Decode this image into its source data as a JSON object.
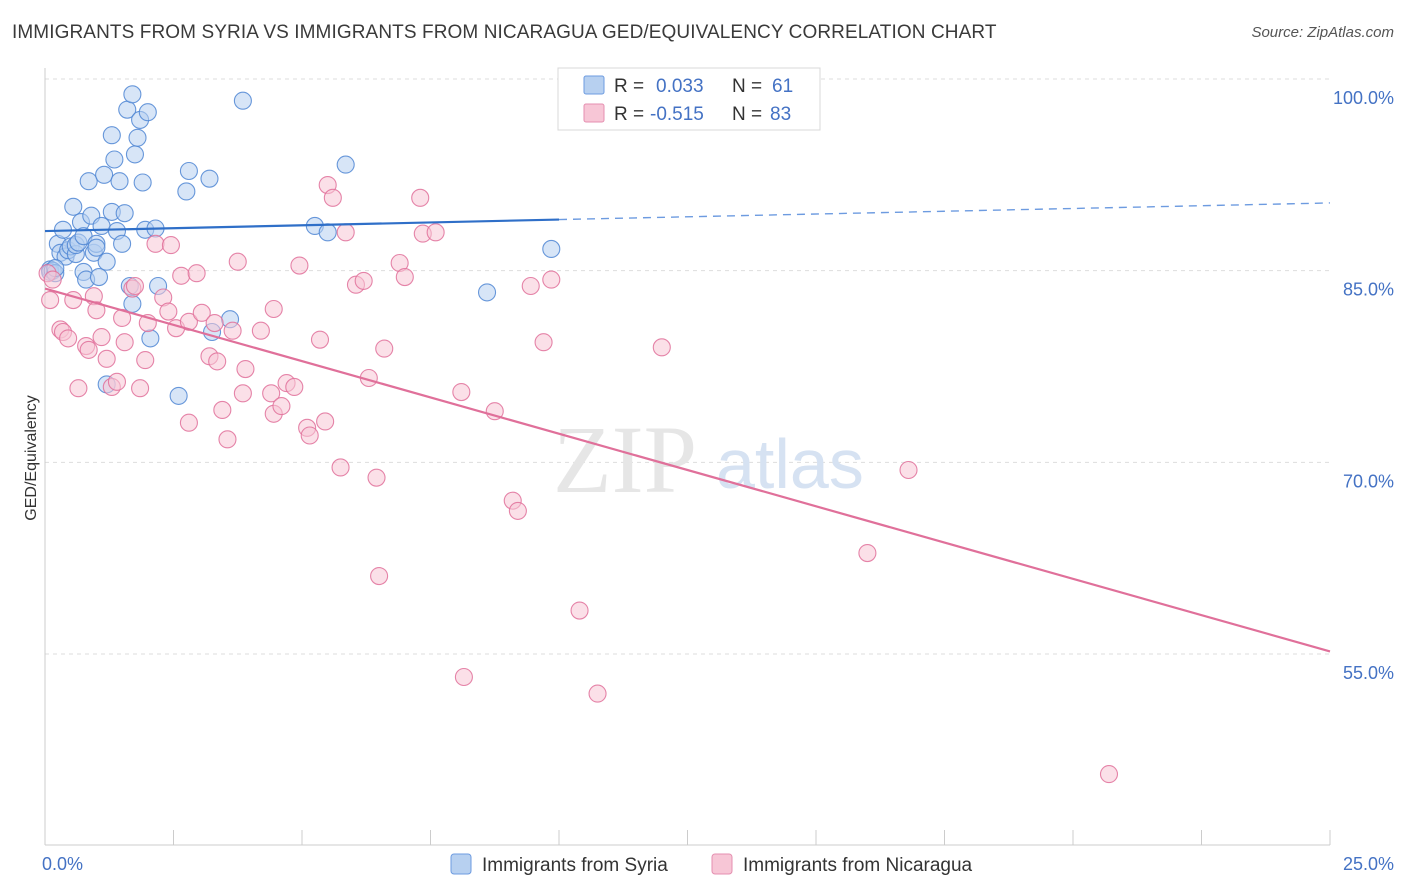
{
  "title": "IMMIGRANTS FROM SYRIA VS IMMIGRANTS FROM NICARAGUA GED/EQUIVALENCY CORRELATION CHART",
  "source": "Source: ZipAtlas.com",
  "watermark": {
    "zip": "ZIP",
    "atlas": "atlas"
  },
  "chart_data": {
    "type": "scatter",
    "title": "IMMIGRANTS FROM SYRIA VS IMMIGRANTS FROM NICARAGUA GED/EQUIVALENCY CORRELATION CHART",
    "xlabel": "",
    "ylabel": "GED/Equivalency",
    "xlim": [
      0,
      25
    ],
    "ylim": [
      40,
      101
    ],
    "x_tick_labels": [
      {
        "value": 0,
        "label": "0.0%"
      },
      {
        "value": 25,
        "label": "25.0%"
      }
    ],
    "y_tick_labels": [
      {
        "value": 100,
        "label": "100.0%"
      },
      {
        "value": 85,
        "label": "85.0%"
      },
      {
        "value": 70,
        "label": "70.0%"
      },
      {
        "value": 55,
        "label": "55.0%"
      }
    ],
    "grid": true,
    "legend_position": "top-center",
    "stats": [
      {
        "series": "Immigrants from Syria",
        "r_label": "R =",
        "r_value": "0.033",
        "n_label": "N =",
        "n_value": "61"
      },
      {
        "series": "Immigrants from Nicaragua",
        "r_label": "R =",
        "r_value": "-0.515",
        "n_label": "N =",
        "n_value": "83"
      }
    ],
    "series": [
      {
        "name": "Immigrants from Syria",
        "color": "#4f86d4",
        "fill": "#b7d0f0",
        "trend": {
          "x0": 0,
          "y0": 88.1,
          "x1": 10,
          "y1": 89.0,
          "x_dash_end": 25,
          "y_dash_end": 90.3
        },
        "points": [
          [
            0.1,
            85.1
          ],
          [
            0.1,
            84.9
          ],
          [
            0.15,
            85.0
          ],
          [
            0.2,
            84.8
          ],
          [
            0.25,
            87.1
          ],
          [
            0.3,
            86.4
          ],
          [
            0.35,
            88.2
          ],
          [
            0.4,
            86.1
          ],
          [
            0.45,
            86.6
          ],
          [
            0.5,
            86.9
          ],
          [
            0.55,
            90.0
          ],
          [
            0.6,
            86.3
          ],
          [
            0.6,
            87.0
          ],
          [
            0.65,
            87.2
          ],
          [
            0.7,
            88.8
          ],
          [
            0.75,
            87.7
          ],
          [
            0.75,
            84.9
          ],
          [
            0.8,
            84.3
          ],
          [
            0.85,
            92.0
          ],
          [
            0.9,
            89.3
          ],
          [
            0.95,
            86.4
          ],
          [
            1.0,
            87.1
          ],
          [
            1.05,
            84.5
          ],
          [
            1.1,
            88.5
          ],
          [
            1.15,
            92.5
          ],
          [
            1.2,
            85.7
          ],
          [
            1.2,
            76.1
          ],
          [
            1.3,
            95.6
          ],
          [
            1.3,
            89.6
          ],
          [
            1.35,
            93.7
          ],
          [
            1.4,
            88.1
          ],
          [
            1.45,
            92.0
          ],
          [
            1.5,
            87.1
          ],
          [
            1.55,
            89.5
          ],
          [
            1.6,
            97.6
          ],
          [
            1.65,
            83.8
          ],
          [
            1.7,
            82.4
          ],
          [
            1.7,
            98.8
          ],
          [
            1.75,
            94.1
          ],
          [
            1.8,
            95.4
          ],
          [
            1.85,
            96.8
          ],
          [
            1.9,
            91.9
          ],
          [
            1.95,
            88.2
          ],
          [
            2.0,
            97.4
          ],
          [
            2.05,
            79.7
          ],
          [
            2.15,
            88.3
          ],
          [
            2.2,
            83.8
          ],
          [
            2.6,
            75.2
          ],
          [
            2.75,
            91.2
          ],
          [
            2.8,
            92.8
          ],
          [
            3.2,
            92.2
          ],
          [
            3.25,
            80.2
          ],
          [
            3.6,
            81.2
          ],
          [
            3.85,
            98.3
          ],
          [
            5.25,
            88.5
          ],
          [
            5.5,
            88.0
          ],
          [
            5.85,
            93.3
          ],
          [
            8.6,
            83.3
          ],
          [
            9.85,
            86.7
          ],
          [
            0.2,
            85.2
          ],
          [
            1.0,
            86.8
          ]
        ]
      },
      {
        "name": "Immigrants from Nicaragua",
        "color": "#e0709a",
        "fill": "#f7c6d6",
        "trend": {
          "x0": 0,
          "y0": 83.6,
          "x1": 25,
          "y1": 55.2
        },
        "points": [
          [
            0.05,
            84.8
          ],
          [
            0.1,
            82.7
          ],
          [
            0.3,
            80.4
          ],
          [
            0.35,
            80.2
          ],
          [
            0.45,
            79.7
          ],
          [
            0.55,
            82.7
          ],
          [
            0.65,
            75.8
          ],
          [
            0.8,
            79.1
          ],
          [
            0.85,
            78.8
          ],
          [
            0.95,
            83.0
          ],
          [
            1.0,
            81.9
          ],
          [
            1.1,
            79.8
          ],
          [
            1.2,
            78.1
          ],
          [
            1.3,
            75.9
          ],
          [
            1.4,
            76.3
          ],
          [
            1.5,
            81.3
          ],
          [
            1.55,
            79.4
          ],
          [
            1.7,
            83.6
          ],
          [
            1.75,
            83.8
          ],
          [
            1.85,
            75.8
          ],
          [
            1.95,
            78.0
          ],
          [
            2.0,
            80.9
          ],
          [
            2.15,
            87.1
          ],
          [
            2.3,
            82.9
          ],
          [
            2.4,
            81.8
          ],
          [
            2.45,
            87.0
          ],
          [
            2.55,
            80.5
          ],
          [
            2.65,
            84.6
          ],
          [
            2.8,
            81.0
          ],
          [
            2.8,
            73.1
          ],
          [
            2.95,
            84.8
          ],
          [
            3.05,
            81.7
          ],
          [
            3.2,
            78.3
          ],
          [
            3.3,
            80.9
          ],
          [
            3.35,
            77.9
          ],
          [
            3.45,
            74.1
          ],
          [
            3.55,
            71.8
          ],
          [
            3.65,
            80.3
          ],
          [
            3.75,
            85.7
          ],
          [
            3.85,
            75.4
          ],
          [
            3.9,
            77.3
          ],
          [
            4.2,
            80.3
          ],
          [
            4.4,
            75.4
          ],
          [
            4.45,
            82.0
          ],
          [
            4.45,
            73.8
          ],
          [
            4.6,
            74.4
          ],
          [
            4.7,
            76.2
          ],
          [
            4.85,
            75.9
          ],
          [
            4.95,
            85.4
          ],
          [
            5.1,
            72.7
          ],
          [
            5.15,
            72.1
          ],
          [
            5.35,
            79.6
          ],
          [
            5.45,
            73.2
          ],
          [
            5.5,
            91.7
          ],
          [
            5.6,
            90.7
          ],
          [
            5.75,
            69.6
          ],
          [
            5.85,
            88.0
          ],
          [
            6.05,
            83.9
          ],
          [
            6.2,
            84.2
          ],
          [
            6.3,
            76.6
          ],
          [
            6.45,
            68.8
          ],
          [
            6.5,
            61.1
          ],
          [
            6.6,
            78.9
          ],
          [
            6.9,
            85.6
          ],
          [
            7.0,
            84.5
          ],
          [
            7.3,
            90.7
          ],
          [
            7.35,
            87.9
          ],
          [
            7.6,
            88.0
          ],
          [
            8.15,
            53.2
          ],
          [
            8.1,
            75.5
          ],
          [
            8.75,
            74.0
          ],
          [
            9.1,
            67.0
          ],
          [
            9.2,
            66.2
          ],
          [
            9.45,
            83.8
          ],
          [
            9.7,
            79.4
          ],
          [
            9.85,
            84.3
          ],
          [
            10.4,
            58.4
          ],
          [
            10.75,
            51.9
          ],
          [
            12.0,
            79.0
          ],
          [
            16.0,
            62.9
          ],
          [
            16.8,
            69.4
          ],
          [
            20.7,
            45.6
          ],
          [
            0.15,
            84.3
          ]
        ]
      }
    ]
  },
  "legend_bottom": [
    {
      "label": "Immigrants from Syria",
      "color": "#b7d0f0",
      "stroke": "#6d9be0"
    },
    {
      "label": "Immigrants from Nicaragua",
      "color": "#f7c6d6",
      "stroke": "#e58fb0"
    }
  ]
}
